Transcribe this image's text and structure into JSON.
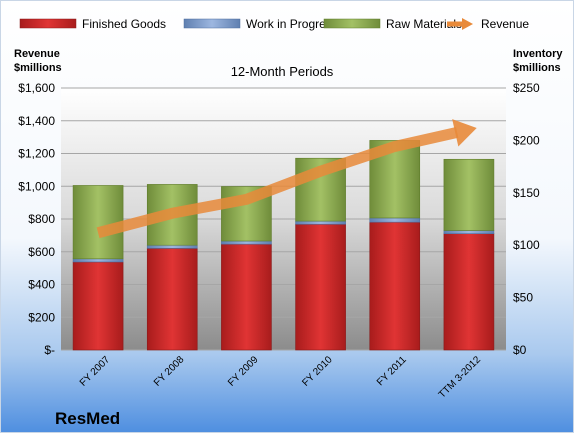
{
  "chart_data": {
    "type": "bar",
    "stacked": true,
    "title": "12-Month Periods",
    "company": "ResMed",
    "ylabel_left": [
      "Revenue",
      "$millions"
    ],
    "ylabel_right": [
      "Inventory",
      "$millions"
    ],
    "categories": [
      "FY 2007",
      "FY 2008",
      "FY 2009",
      "FY 2010",
      "FY 2011",
      "TTM 3-2012"
    ],
    "left_ticks": [
      "$-",
      "$200",
      "$400",
      "$600",
      "$800",
      "$1,000",
      "$1,200",
      "$1,400",
      "$1,600"
    ],
    "right_ticks": [
      "$0",
      "$50",
      "$100",
      "$150",
      "$200",
      "$250"
    ],
    "ylim_left": [
      0,
      1600
    ],
    "ylim_right": [
      0,
      250
    ],
    "legend_position": "top",
    "series": [
      {
        "name": "Finished Goods",
        "axis": "right",
        "color": "#cc2a2a",
        "values": [
          84,
          97,
          101,
          120,
          122,
          111
        ]
      },
      {
        "name": "Work in Progress",
        "axis": "right",
        "color": "#7f9fce",
        "values": [
          3,
          3,
          3,
          3,
          4,
          3
        ]
      },
      {
        "name": "Raw Materials",
        "axis": "right",
        "color": "#8fae52",
        "values": [
          70,
          58,
          52,
          60,
          74,
          68
        ]
      },
      {
        "name": "Revenue",
        "axis": "left",
        "type": "line",
        "color": "#e88a3a",
        "values": [
          716,
          835,
          920,
          1092,
          1243,
          1345
        ]
      }
    ]
  }
}
